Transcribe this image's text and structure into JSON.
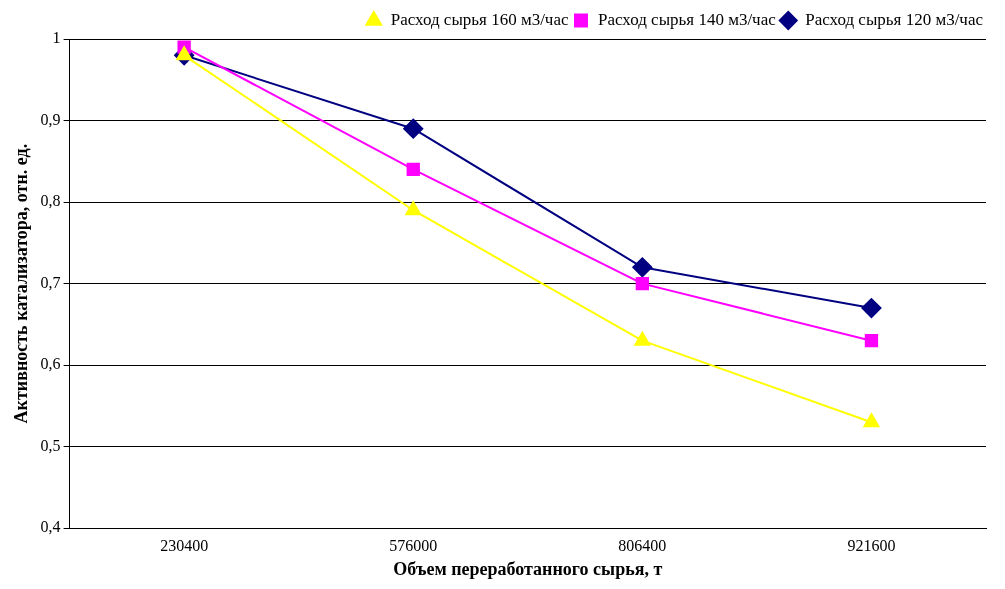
{
  "chart_data": {
    "type": "line",
    "xlabel": "Объем переработанного сырья, т",
    "ylabel": "Активность катализатора, отн. ед.",
    "categories": [
      "230400",
      "576000",
      "806400",
      "921600"
    ],
    "series": [
      {
        "name": "Расход сырья 120 м3/час",
        "color": "#000080",
        "marker": "diamond",
        "values": [
          0.98,
          0.89,
          0.72,
          0.67
        ]
      },
      {
        "name": "Расход сырья 140 м3/час",
        "color": "#ff00ff",
        "marker": "square",
        "values": [
          0.99,
          0.84,
          0.7,
          0.63
        ]
      },
      {
        "name": "Расход сырья 160 м3/час",
        "color": "#ffff00",
        "marker": "triangle",
        "values": [
          0.98,
          0.79,
          0.63,
          0.53
        ]
      }
    ],
    "ylim": [
      0.4,
      1
    ],
    "yticks": [
      {
        "value": 0.4,
        "label": "0,4"
      },
      {
        "value": 0.5,
        "label": "0,5"
      },
      {
        "value": 0.6,
        "label": "0,6"
      },
      {
        "value": 0.7,
        "label": "0,7"
      },
      {
        "value": 0.8,
        "label": "0,8"
      },
      {
        "value": 0.9,
        "label": "0,9"
      },
      {
        "value": 1,
        "label": "1"
      }
    ],
    "grid": "y",
    "legend": "top right",
    "line_style": "solid"
  }
}
